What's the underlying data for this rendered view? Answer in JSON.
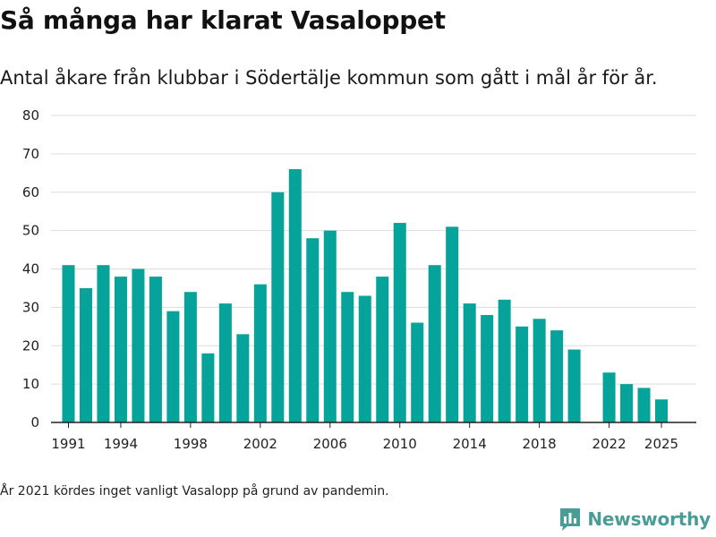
{
  "title": "Så många har klarat Vasaloppet",
  "subtitle": "Antal åkare från klubbar i Södertälje kommun som gått i mål år för år.",
  "footnote": "År 2021 kördes inget vanligt Vasalopp på grund av pandemin.",
  "brand": {
    "name": "Newsworthy",
    "icon": "newsworthy-logo-icon",
    "color": "#4a9c97"
  },
  "colors": {
    "bar": "#06a39a",
    "grid": "#dddddd",
    "axis": "#222222",
    "text": "#222222"
  },
  "chart_data": {
    "type": "bar",
    "title": "Så många har klarat Vasaloppet",
    "xlabel": "",
    "ylabel": "",
    "ylim": [
      0,
      80
    ],
    "yticks": [
      0,
      10,
      20,
      30,
      40,
      50,
      60,
      70,
      80
    ],
    "xlim": [
      1990,
      2027
    ],
    "xtick_labels": [
      "1991",
      "1994",
      "1998",
      "2002",
      "2006",
      "2010",
      "2014",
      "2018",
      "2022",
      "2025"
    ],
    "categories": [
      1991,
      1992,
      1993,
      1994,
      1995,
      1996,
      1997,
      1998,
      1999,
      2000,
      2001,
      2002,
      2003,
      2004,
      2005,
      2006,
      2007,
      2008,
      2009,
      2010,
      2011,
      2012,
      2013,
      2014,
      2015,
      2016,
      2017,
      2018,
      2019,
      2020,
      2022,
      2023,
      2024,
      2025
    ],
    "values": [
      41,
      35,
      41,
      38,
      40,
      38,
      29,
      34,
      18,
      31,
      23,
      36,
      60,
      66,
      48,
      50,
      34,
      33,
      38,
      52,
      26,
      41,
      51,
      31,
      28,
      32,
      25,
      27,
      24,
      19,
      13,
      10,
      9,
      6
    ],
    "grid": true,
    "legend": "none"
  }
}
